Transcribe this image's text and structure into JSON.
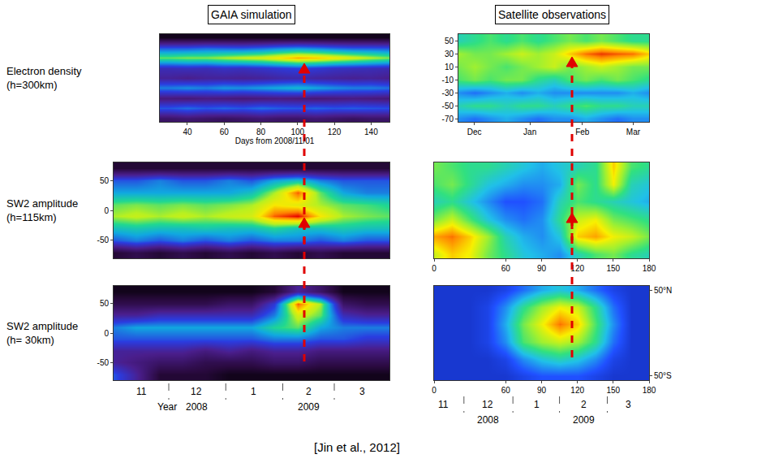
{
  "headers": [
    "GAIA simulation",
    "Satellite observations"
  ],
  "row_labels": [
    [
      "Electron density",
      "(h=300km)"
    ],
    [
      "SW2 amplitude",
      "(h=115km)"
    ],
    [
      "SW2 amplitude",
      "(h= 30km)"
    ]
  ],
  "source": "[Jin et al., 2012]",
  "chart_data": [
    {
      "type": "heatmap",
      "x": [
        30,
        40,
        50,
        60,
        70,
        80,
        90,
        100,
        110,
        120,
        130,
        140,
        150
      ],
      "y": [
        -60,
        -45,
        -30,
        -15,
        0,
        15,
        30,
        45,
        60
      ],
      "z": [
        [
          0.2,
          0.22,
          0.2,
          0.18,
          0.2,
          0.22,
          0.2,
          0.2,
          0.22,
          0.2,
          0.18,
          0.2,
          0.2
        ],
        [
          0.45,
          0.48,
          0.45,
          0.47,
          0.45,
          0.48,
          0.46,
          0.45,
          0.47,
          0.45,
          0.46,
          0.45,
          0.44
        ],
        [
          0.25,
          0.24,
          0.26,
          0.25,
          0.24,
          0.25,
          0.26,
          0.25,
          0.24,
          0.25,
          0.26,
          0.25,
          0.24
        ],
        [
          0.5,
          0.52,
          0.5,
          0.53,
          0.52,
          0.54,
          0.56,
          0.58,
          0.55,
          0.52,
          0.5,
          0.5,
          0.48
        ],
        [
          0.3,
          0.28,
          0.3,
          0.3,
          0.29,
          0.3,
          0.32,
          0.33,
          0.31,
          0.3,
          0.29,
          0.3,
          0.28
        ],
        [
          0.35,
          0.36,
          0.35,
          0.37,
          0.36,
          0.38,
          0.4,
          0.42,
          0.4,
          0.37,
          0.36,
          0.35,
          0.34
        ],
        [
          0.7,
          0.72,
          0.72,
          0.75,
          0.78,
          0.8,
          0.85,
          0.9,
          0.88,
          0.84,
          0.8,
          0.76,
          0.72
        ],
        [
          0.45,
          0.45,
          0.47,
          0.46,
          0.45,
          0.47,
          0.5,
          0.52,
          0.5,
          0.47,
          0.45,
          0.45,
          0.44
        ],
        [
          0.05,
          0.05,
          0.05,
          0.05,
          0.05,
          0.05,
          0.05,
          0.05,
          0.05,
          0.05,
          0.05,
          0.05,
          0.05
        ]
      ],
      "zlim": [
        0,
        1
      ],
      "xlim": [
        25,
        150
      ],
      "ylim": [
        -65,
        65
      ],
      "xticks": [
        40,
        60,
        80,
        100,
        120,
        140
      ],
      "xlabel": "Days from 2008/11/01",
      "tick_labels": "x"
    },
    {
      "type": "heatmap",
      "x": [
        0,
        12.5,
        25,
        37.5,
        50,
        62.5,
        75,
        87.5,
        100,
        112.5,
        125,
        137.5,
        150
      ],
      "y": [
        -70,
        -50,
        -30,
        -10,
        10,
        30,
        50,
        70
      ],
      "z": [
        [
          0.1,
          0.15,
          0.1,
          0.15,
          0.1,
          0.15,
          0.1,
          0.15,
          0.1,
          0.15,
          0.1,
          0.1,
          0.1
        ],
        [
          0.45,
          0.5,
          0.45,
          0.5,
          0.45,
          0.5,
          0.45,
          0.5,
          0.5,
          0.45,
          0.5,
          0.45,
          0.45
        ],
        [
          0.6,
          0.62,
          0.6,
          0.6,
          0.62,
          0.6,
          0.6,
          0.65,
          0.6,
          0.6,
          0.62,
          0.6,
          0.6
        ],
        [
          0.75,
          0.78,
          0.75,
          0.78,
          0.75,
          0.78,
          0.8,
          0.95,
          1.0,
          0.85,
          0.75,
          0.72,
          0.7
        ],
        [
          0.7,
          0.72,
          0.7,
          0.72,
          0.7,
          0.72,
          0.75,
          0.85,
          0.82,
          0.75,
          0.7,
          0.68,
          0.65
        ],
        [
          0.55,
          0.55,
          0.55,
          0.55,
          0.55,
          0.55,
          0.6,
          0.75,
          0.95,
          0.7,
          0.55,
          0.5,
          0.5
        ],
        [
          0.45,
          0.45,
          0.5,
          0.45,
          0.45,
          0.5,
          0.45,
          0.55,
          0.6,
          0.5,
          0.45,
          0.45,
          0.45
        ],
        [
          0.1,
          0.1,
          0.1,
          0.1,
          0.1,
          0.1,
          0.1,
          0.1,
          0.1,
          0.1,
          0.1,
          0.1,
          0.1
        ]
      ],
      "zlim": [
        0,
        1
      ],
      "xlim": [
        0,
        150
      ],
      "ylim": [
        -80,
        80
      ],
      "yticks": [
        -50,
        0,
        50
      ],
      "tick_labels": "y"
    },
    {
      "type": "heatmap",
      "x": [
        0,
        12.5,
        25,
        37.5,
        50,
        62.5,
        75,
        87.5,
        100,
        112.5,
        125,
        137.5,
        150
      ],
      "y": [
        -70,
        -50,
        -30,
        -10,
        10,
        30,
        50,
        70
      ],
      "z": [
        [
          0.45,
          0.3,
          0.1,
          0.1,
          0.1,
          0.05,
          0.05,
          0.05,
          0.05,
          0.05,
          0.05,
          0.05,
          0.05
        ],
        [
          0.3,
          0.25,
          0.2,
          0.2,
          0.15,
          0.15,
          0.15,
          0.2,
          0.2,
          0.15,
          0.15,
          0.15,
          0.15
        ],
        [
          0.3,
          0.3,
          0.3,
          0.3,
          0.25,
          0.3,
          0.25,
          0.3,
          0.3,
          0.25,
          0.25,
          0.25,
          0.25
        ],
        [
          0.45,
          0.45,
          0.45,
          0.45,
          0.45,
          0.45,
          0.45,
          0.5,
          0.5,
          0.45,
          0.45,
          0.4,
          0.4
        ],
        [
          0.5,
          0.55,
          0.55,
          0.55,
          0.55,
          0.55,
          0.55,
          0.65,
          0.7,
          0.55,
          0.5,
          0.5,
          0.5
        ],
        [
          0.3,
          0.3,
          0.35,
          0.35,
          0.35,
          0.35,
          0.35,
          0.5,
          0.8,
          0.7,
          0.35,
          0.3,
          0.3
        ],
        [
          0.15,
          0.15,
          0.15,
          0.15,
          0.15,
          0.2,
          0.2,
          0.4,
          0.95,
          0.75,
          0.2,
          0.15,
          0.15
        ],
        [
          0.05,
          0.05,
          0.05,
          0.05,
          0.05,
          0.05,
          0.05,
          0.1,
          0.3,
          0.2,
          0.05,
          0.05,
          0.05
        ]
      ],
      "zlim": [
        0,
        1
      ],
      "xlim": [
        0,
        150
      ],
      "ylim": [
        -80,
        80
      ],
      "yticks": [
        -50,
        0,
        50
      ],
      "tick_labels": "y",
      "months": [
        {
          "value": 15,
          "label": "11"
        },
        {
          "value": 45,
          "label": "12"
        },
        {
          "value": 76,
          "label": "1"
        },
        {
          "value": 106,
          "label": "2"
        },
        {
          "value": 135,
          "label": "3"
        }
      ],
      "month_starts": [
        30,
        61,
        92,
        120
      ],
      "year_title": "Year",
      "years": [
        {
          "value": 45,
          "label": "2008"
        },
        {
          "value": 106,
          "label": "2009"
        }
      ]
    },
    {
      "type": "heatmap",
      "x": [
        0,
        10,
        20,
        30,
        40,
        50,
        60,
        70,
        80,
        90,
        100,
        110,
        120
      ],
      "y": [
        -70,
        -50,
        -30,
        -10,
        10,
        30,
        50
      ],
      "z": [
        [
          0.3,
          0.25,
          0.3,
          0.35,
          0.3,
          0.25,
          0.3,
          0.3,
          0.35,
          0.3,
          0.25,
          0.3,
          0.3
        ],
        [
          0.45,
          0.5,
          0.5,
          0.45,
          0.5,
          0.5,
          0.45,
          0.5,
          0.55,
          0.5,
          0.5,
          0.45,
          0.45
        ],
        [
          0.3,
          0.25,
          0.3,
          0.35,
          0.3,
          0.35,
          0.3,
          0.3,
          0.3,
          0.3,
          0.3,
          0.35,
          0.3
        ],
        [
          0.55,
          0.6,
          0.55,
          0.6,
          0.6,
          0.5,
          0.45,
          0.55,
          0.6,
          0.55,
          0.6,
          0.55,
          0.5
        ],
        [
          0.6,
          0.65,
          0.6,
          0.55,
          0.6,
          0.65,
          0.7,
          0.6,
          0.65,
          0.7,
          0.65,
          0.6,
          0.6
        ],
        [
          0.65,
          0.6,
          0.6,
          0.65,
          0.7,
          0.65,
          0.7,
          0.8,
          0.9,
          0.95,
          0.92,
          0.9,
          0.8
        ],
        [
          0.45,
          0.5,
          0.55,
          0.5,
          0.55,
          0.5,
          0.55,
          0.6,
          0.55,
          0.6,
          0.55,
          0.5,
          0.5
        ]
      ],
      "zlim": [
        0,
        1
      ],
      "xlim": [
        0,
        120
      ],
      "ylim": [
        -75,
        60
      ],
      "xticks": [
        {
          "value": 10,
          "label": "Dec"
        },
        {
          "value": 45,
          "label": "Jan"
        },
        {
          "value": 78,
          "label": "Feb"
        },
        {
          "value": 110,
          "label": "Mar"
        }
      ],
      "yticks": [
        -70,
        -50,
        -30,
        -10,
        10,
        30,
        50
      ]
    },
    {
      "type": "heatmap",
      "x": [
        0,
        15,
        30,
        45,
        60,
        75,
        90,
        105,
        120,
        135,
        150,
        165,
        180
      ],
      "y": [
        -50,
        -30,
        -10,
        10,
        30,
        50
      ],
      "z": [
        [
          0.7,
          0.8,
          0.75,
          0.6,
          0.5,
          0.4,
          0.35,
          0.3,
          0.45,
          0.55,
          0.6,
          0.5,
          0.45
        ],
        [
          0.85,
          0.9,
          0.8,
          0.65,
          0.45,
          0.35,
          0.3,
          0.4,
          0.8,
          0.85,
          0.75,
          0.7,
          0.6
        ],
        [
          0.6,
          0.7,
          0.55,
          0.4,
          0.3,
          0.25,
          0.3,
          0.5,
          0.7,
          0.75,
          0.6,
          0.55,
          0.5
        ],
        [
          0.45,
          0.5,
          0.4,
          0.3,
          0.2,
          0.2,
          0.25,
          0.45,
          0.55,
          0.5,
          0.45,
          0.4,
          0.35
        ],
        [
          0.55,
          0.6,
          0.5,
          0.4,
          0.35,
          0.3,
          0.3,
          0.35,
          0.6,
          0.5,
          0.75,
          0.45,
          0.4
        ],
        [
          0.6,
          0.55,
          0.5,
          0.5,
          0.45,
          0.4,
          0.35,
          0.4,
          0.45,
          0.5,
          0.8,
          0.55,
          0.5
        ]
      ],
      "zlim": [
        0,
        1
      ],
      "xlim": [
        0,
        180
      ],
      "ylim": [
        -55,
        55
      ],
      "xticks": [
        0,
        60,
        90,
        120,
        150,
        180
      ],
      "tick_labels": "x"
    },
    {
      "type": "heatmap",
      "x": [
        0,
        15,
        30,
        45,
        60,
        75,
        90,
        105,
        120,
        135,
        150,
        165,
        180
      ],
      "y": [
        -50,
        -30,
        -10,
        10,
        30,
        50
      ],
      "z": [
        [
          0.1,
          0.1,
          0.1,
          0.1,
          0.1,
          0.15,
          0.2,
          0.2,
          0.2,
          0.15,
          0.1,
          0.1,
          0.1
        ],
        [
          0.1,
          0.1,
          0.1,
          0.1,
          0.15,
          0.3,
          0.4,
          0.45,
          0.4,
          0.3,
          0.15,
          0.1,
          0.1
        ],
        [
          0.1,
          0.1,
          0.1,
          0.15,
          0.3,
          0.55,
          0.65,
          0.7,
          0.65,
          0.5,
          0.25,
          0.1,
          0.1
        ],
        [
          0.1,
          0.1,
          0.1,
          0.15,
          0.35,
          0.6,
          0.75,
          0.9,
          0.8,
          0.55,
          0.3,
          0.1,
          0.1
        ],
        [
          0.1,
          0.1,
          0.1,
          0.15,
          0.3,
          0.5,
          0.65,
          0.75,
          0.7,
          0.5,
          0.25,
          0.1,
          0.1
        ],
        [
          0.1,
          0.1,
          0.1,
          0.1,
          0.15,
          0.25,
          0.35,
          0.4,
          0.35,
          0.25,
          0.15,
          0.1,
          0.1
        ]
      ],
      "zlim": [
        0,
        1
      ],
      "xlim": [
        0,
        180
      ],
      "ylim": [
        -55,
        55
      ],
      "xticks": [
        0,
        60,
        90,
        120,
        150,
        180
      ],
      "yticks": [
        {
          "value": -50,
          "label": "50°S"
        },
        {
          "value": 50,
          "label": "50°N"
        }
      ],
      "months": [
        {
          "value": 8,
          "label": "11"
        },
        {
          "value": 45,
          "label": "12"
        },
        {
          "value": 86,
          "label": "1"
        },
        {
          "value": 125,
          "label": "2"
        },
        {
          "value": 163,
          "label": "3"
        }
      ],
      "month_starts": [
        25,
        66,
        105,
        145
      ],
      "years": [
        {
          "value": 45,
          "label": "2008"
        },
        {
          "value": 125,
          "label": "2009"
        }
      ]
    }
  ]
}
